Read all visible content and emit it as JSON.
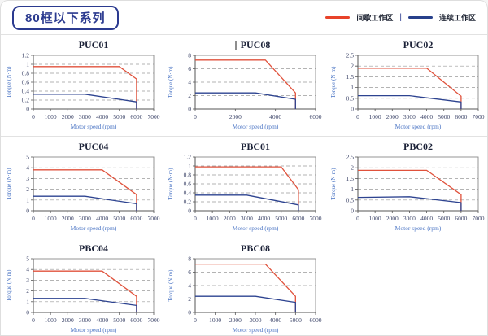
{
  "page": {
    "badge": "80框以下系列",
    "legend": {
      "intermittent_label": "间歇工作区",
      "separator": "|",
      "continuous_label": "连续工作区"
    }
  },
  "colors": {
    "intermittent": "#e0523c",
    "continuous": "#2d4390",
    "legend_intermittent": "#e8432a",
    "legend_continuous": "#27408b",
    "badge": "#2b3a8f",
    "chart_title": "#1c2238",
    "tick_label": "#3c4468",
    "axis_label": "#4a74c4",
    "grid_line": "#9a9a9a",
    "frame": "#8a8a8a",
    "axis": "#555555"
  },
  "chart_data": [
    {
      "type": "line",
      "title": "PUC01",
      "text_cursor": false,
      "xlabel": "Motor speed (rpm)",
      "ylabel": "Torque (N·m)",
      "xlim": [
        0,
        7000
      ],
      "xstep": 1000,
      "ylim": [
        0,
        1.2
      ],
      "ystep": 0.2,
      "series": [
        {
          "name": "间歇工作区",
          "role": "intermittent",
          "points": [
            [
              0,
              0.95
            ],
            [
              5000,
              0.95
            ],
            [
              6000,
              0.67
            ],
            [
              6000,
              0
            ]
          ]
        },
        {
          "name": "连续工作区",
          "role": "continuous",
          "points": [
            [
              0,
              0.33
            ],
            [
              3000,
              0.33
            ],
            [
              6000,
              0.16
            ],
            [
              6000,
              0
            ]
          ]
        }
      ]
    },
    {
      "type": "line",
      "title": "PUC08",
      "text_cursor": true,
      "xlabel": "Motor speed (rpm)",
      "ylabel": "Torque (N·m)",
      "xlim": [
        0,
        6000
      ],
      "xstep": 2000,
      "ylim": [
        0,
        8
      ],
      "ystep": 2,
      "series": [
        {
          "name": "间歇工作区",
          "role": "intermittent",
          "points": [
            [
              0,
              7.3
            ],
            [
              3500,
              7.3
            ],
            [
              5000,
              2.4
            ],
            [
              5000,
              0
            ]
          ]
        },
        {
          "name": "连续工作区",
          "role": "continuous",
          "points": [
            [
              0,
              2.4
            ],
            [
              3000,
              2.4
            ],
            [
              5000,
              1.45
            ],
            [
              5000,
              0
            ]
          ]
        }
      ]
    },
    {
      "type": "line",
      "title": "PUC02",
      "text_cursor": false,
      "xlabel": "Motor speed (rpm)",
      "ylabel": "Torque (N·m)",
      "xlim": [
        0,
        7000
      ],
      "xstep": 1000,
      "ylim": [
        0,
        2.5
      ],
      "ystep": 0.5,
      "series": [
        {
          "name": "间歇工作区",
          "role": "intermittent",
          "points": [
            [
              0,
              1.9
            ],
            [
              4000,
              1.9
            ],
            [
              6000,
              0.6
            ],
            [
              6000,
              0
            ]
          ]
        },
        {
          "name": "连续工作区",
          "role": "continuous",
          "points": [
            [
              0,
              0.62
            ],
            [
              3000,
              0.62
            ],
            [
              6000,
              0.33
            ],
            [
              6000,
              0
            ]
          ]
        }
      ]
    },
    {
      "type": "line",
      "title": "PUC04",
      "text_cursor": false,
      "xlabel": "Motor speed (rpm)",
      "ylabel": "Torque (N·m)",
      "xlim": [
        0,
        7000
      ],
      "xstep": 1000,
      "ylim": [
        0,
        5
      ],
      "ystep": 1,
      "series": [
        {
          "name": "间歇工作区",
          "role": "intermittent",
          "points": [
            [
              0,
              3.8
            ],
            [
              4000,
              3.8
            ],
            [
              6000,
              1.5
            ],
            [
              6000,
              0
            ]
          ]
        },
        {
          "name": "连续工作区",
          "role": "continuous",
          "points": [
            [
              0,
              1.35
            ],
            [
              3000,
              1.35
            ],
            [
              6000,
              0.65
            ],
            [
              6000,
              0
            ]
          ]
        }
      ]
    },
    {
      "type": "line",
      "title": "PBC01",
      "text_cursor": false,
      "xlabel": "Motor speed (rpm)",
      "ylabel": "Torque (N·m)",
      "xlim": [
        0,
        7000
      ],
      "xstep": 1000,
      "ylim": [
        0,
        1.2
      ],
      "ystep": 0.2,
      "series": [
        {
          "name": "间歇工作区",
          "role": "intermittent",
          "points": [
            [
              0,
              0.98
            ],
            [
              5000,
              0.98
            ],
            [
              6000,
              0.47
            ],
            [
              6000,
              0
            ]
          ]
        },
        {
          "name": "连续工作区",
          "role": "continuous",
          "points": [
            [
              0,
              0.35
            ],
            [
              3000,
              0.35
            ],
            [
              6000,
              0.13
            ],
            [
              6000,
              0
            ]
          ]
        }
      ]
    },
    {
      "type": "line",
      "title": "PBC02",
      "text_cursor": false,
      "xlabel": "Motor speed (rpm)",
      "ylabel": "Torque (N·m)",
      "xlim": [
        0,
        7000
      ],
      "xstep": 1000,
      "ylim": [
        0,
        2.5
      ],
      "ystep": 0.5,
      "series": [
        {
          "name": "间歇工作区",
          "role": "intermittent",
          "points": [
            [
              0,
              1.88
            ],
            [
              4000,
              1.88
            ],
            [
              6000,
              0.75
            ],
            [
              6000,
              0
            ]
          ]
        },
        {
          "name": "连续工作区",
          "role": "continuous",
          "points": [
            [
              0,
              0.62
            ],
            [
              3000,
              0.65
            ],
            [
              6000,
              0.38
            ],
            [
              6000,
              0
            ]
          ]
        }
      ]
    },
    {
      "type": "line",
      "title": "PBC04",
      "text_cursor": false,
      "xlabel": "Motor speed (rpm)",
      "ylabel": "Torque (N·m)",
      "xlim": [
        0,
        7000
      ],
      "xstep": 1000,
      "ylim": [
        0,
        5
      ],
      "ystep": 1,
      "series": [
        {
          "name": "间歇工作区",
          "role": "intermittent",
          "points": [
            [
              0,
              3.85
            ],
            [
              4000,
              3.85
            ],
            [
              6000,
              1.5
            ],
            [
              6000,
              0
            ]
          ]
        },
        {
          "name": "连续工作区",
          "role": "continuous",
          "points": [
            [
              0,
              1.3
            ],
            [
              3000,
              1.3
            ],
            [
              6000,
              0.65
            ],
            [
              6000,
              0
            ]
          ]
        }
      ]
    },
    {
      "type": "line",
      "title": "PBC08",
      "text_cursor": false,
      "xlabel": "Motor speed (rpm)",
      "ylabel": "Torque (N·m)",
      "xlim": [
        0,
        6000
      ],
      "xstep": 1000,
      "ylim": [
        0,
        8
      ],
      "ystep": 2,
      "series": [
        {
          "name": "间歇工作区",
          "role": "intermittent",
          "points": [
            [
              0,
              7.2
            ],
            [
              3500,
              7.2
            ],
            [
              5000,
              2.4
            ],
            [
              5000,
              0
            ]
          ]
        },
        {
          "name": "连续工作区",
          "role": "continuous",
          "points": [
            [
              0,
              2.4
            ],
            [
              3000,
              2.4
            ],
            [
              5000,
              1.5
            ],
            [
              5000,
              0
            ]
          ]
        }
      ]
    }
  ]
}
